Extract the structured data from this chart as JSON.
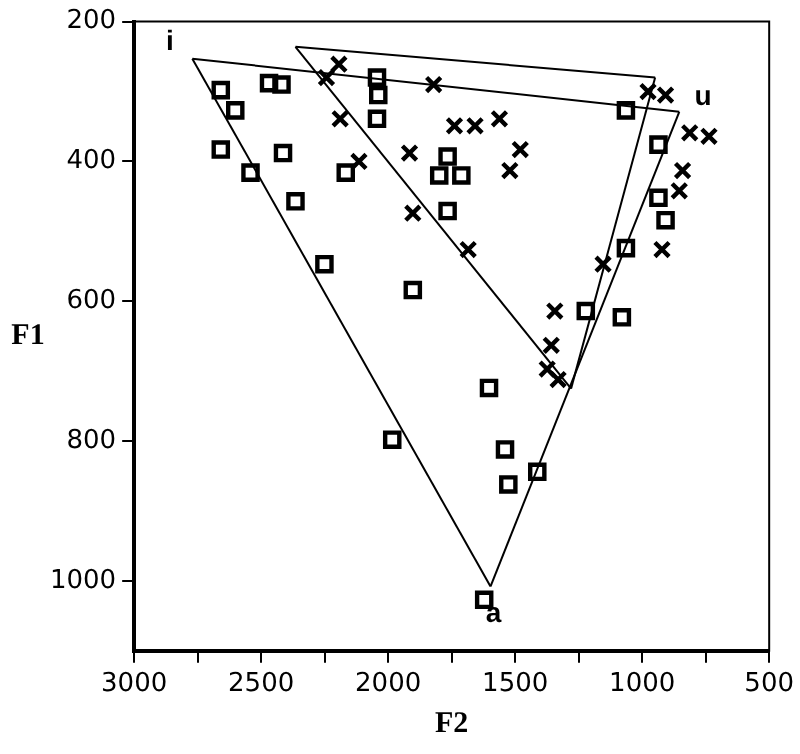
{
  "chart_data": {
    "type": "scatter",
    "xlabel": "F2",
    "ylabel": "F1",
    "xlim": [
      3000,
      500
    ],
    "ylim": [
      1100,
      200
    ],
    "xticks": [
      3000,
      {
        "value": 2750,
        "label": null
      },
      2500,
      {
        "value": 2250,
        "label": null
      },
      2000,
      {
        "value": 1750,
        "label": null
      },
      1500,
      {
        "value": 1250,
        "label": null
      },
      1000,
      {
        "value": 750,
        "label": null
      },
      500
    ],
    "yticks": [
      200,
      400,
      600,
      800,
      1000
    ],
    "grid": false,
    "legend": false,
    "series": [
      {
        "marker": "square",
        "color": "#000000",
        "x": [
          2659,
          2602,
          2659,
          2542,
          2469,
          2420,
          2414,
          2365,
          2251,
          2044,
          2039,
          2044,
          2167,
          1903,
          1766,
          1799,
          1712,
          1766,
          1064,
          936,
          936,
          908,
          1064,
          1222,
          1080,
          1603,
          1540,
          1527,
          1413,
          1622,
          1984
        ],
        "values": [
          298,
          327,
          383,
          416,
          288,
          290,
          388,
          457,
          547,
          280,
          305,
          339,
          416,
          584,
          393,
          420,
          420,
          471,
          327,
          376,
          452,
          484,
          524,
          614,
          623,
          724,
          812,
          862,
          844,
          1027,
          798
        ]
      },
      {
        "marker": "cross",
        "color": "#000000",
        "x": [
          2243,
          2194,
          2189,
          2115,
          1916,
          1903,
          1821,
          1739,
          1658,
          1562,
          1521,
          1480,
          1685,
          977,
          908,
          813,
          737,
          841,
          854,
          922,
          1154,
          1344,
          1358,
          1331,
          1374
        ],
        "values": [
          280,
          261,
          339,
          400,
          388,
          474,
          290,
          349,
          349,
          339,
          413,
          383,
          526,
          300,
          305,
          359,
          364,
          413,
          442,
          526,
          547,
          614,
          663,
          712,
          697
        ]
      },
      {
        "type": "line",
        "marker": "none",
        "line_style": "solid",
        "color": "#000000",
        "x": [
          854,
          2771
        ],
        "values": [
          329,
          253
        ]
      },
      {
        "type": "line",
        "marker": "none",
        "line_style": "solid",
        "color": "#000000",
        "x": [
          854,
          1597
        ],
        "values": [
          329,
          1008
        ]
      },
      {
        "type": "line",
        "marker": "none",
        "line_style": "solid",
        "color": "#000000",
        "x": [
          1597,
          2771
        ],
        "values": [
          1008,
          253
        ]
      },
      {
        "type": "line",
        "marker": "none",
        "line_style": "solid",
        "color": "#000000",
        "x": [
          949,
          2365
        ],
        "values": [
          280,
          236
        ]
      },
      {
        "type": "line",
        "marker": "none",
        "line_style": "solid",
        "color": "#000000",
        "x": [
          949,
          1280
        ],
        "values": [
          280,
          725
        ]
      },
      {
        "type": "line",
        "marker": "none",
        "line_style": "solid",
        "color": "#000000",
        "x": [
          1280,
          2365
        ],
        "values": [
          725,
          236
        ]
      }
    ],
    "annotations": [
      {
        "text": "i",
        "x": 2771,
        "y": 253
      },
      {
        "text": "u",
        "x": 854,
        "y": 329
      },
      {
        "text": "a",
        "x": 1597,
        "y": 1008
      }
    ]
  }
}
